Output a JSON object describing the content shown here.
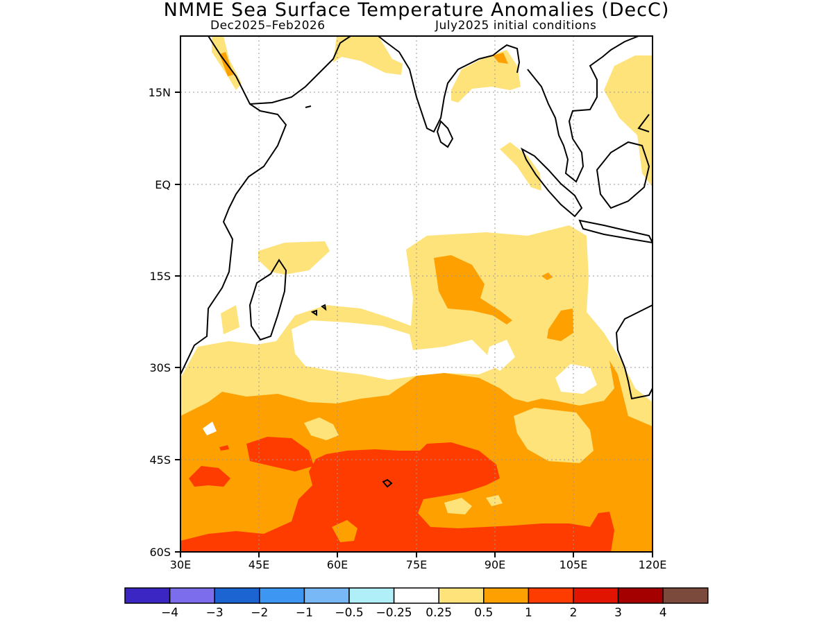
{
  "title": "NMME Sea Surface Temperature Anomalies (DecC)",
  "season": "Dec2025–Feb2026",
  "initial_conditions": "July2025 initial conditions",
  "lat_labels": [
    "15N",
    "EQ",
    "15S",
    "30S",
    "45S",
    "60S"
  ],
  "lon_labels": [
    "30E",
    "45E",
    "60E",
    "75E",
    "90E",
    "105E",
    "120E"
  ],
  "colorbar": {
    "colors": [
      "#3b26c3",
      "#7b6deb",
      "#1b64d2",
      "#3d96f2",
      "#78b8f7",
      "#b0eff8",
      "#ffffff",
      "#fee27a",
      "#fea000",
      "#fe3c00",
      "#e01400",
      "#a50000",
      "#7c4a3d"
    ],
    "labels": [
      "−4",
      "−3",
      "−2",
      "−1",
      "−0.5",
      "−0.25",
      "0.25",
      "0.5",
      "1",
      "2",
      "3",
      "4"
    ]
  },
  "map": {
    "region": "Indian Ocean",
    "lon_range": [
      30,
      120
    ],
    "lat_range": [
      -60,
      24
    ],
    "grid": "dotted",
    "anomaly_classes_shown": [
      "0.25–0.5",
      "0.5–1",
      "1–2"
    ]
  }
}
